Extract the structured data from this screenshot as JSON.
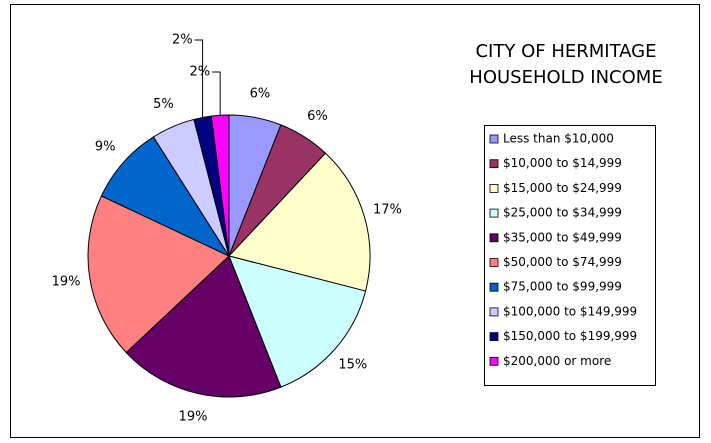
{
  "chart_data": {
    "type": "pie",
    "title": [
      "CITY OF HERMITAGE",
      "HOUSEHOLD INCOME"
    ],
    "categories": [
      "Less than $10,000",
      "$10,000 to $14,999",
      "$15,000 to $24,999",
      "$25,000 to $34,999",
      "$35,000 to $49,999",
      "$50,000 to $74,999",
      "$75,000 to $99,999",
      "$100,000 to $149,999",
      "$150,000 to $199,999",
      "$200,000 or more"
    ],
    "values": [
      6,
      6,
      17,
      15,
      19,
      19,
      9,
      5,
      2,
      2
    ],
    "value_labels": [
      "6%",
      "6%",
      "17%",
      "15%",
      "19%",
      "19%",
      "9%",
      "5%",
      "2%",
      "2%"
    ],
    "colors": [
      "#9999ff",
      "#993366",
      "#ffffcc",
      "#ccffff",
      "#660066",
      "#ff8080",
      "#0066cc",
      "#ccccff",
      "#000080",
      "#ff00ff"
    ],
    "legend": "right"
  }
}
